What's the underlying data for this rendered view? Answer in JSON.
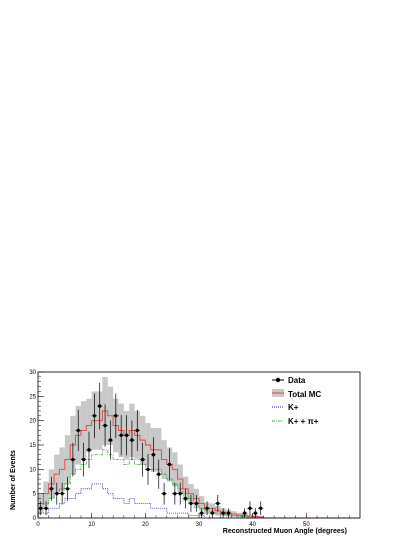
{
  "chart_data": {
    "type": "histogram",
    "xlabel": "Reconstructed Muon Angle (degrees)",
    "ylabel": "Number of Events",
    "xlim": [
      0,
      60
    ],
    "ylim": [
      0,
      30
    ],
    "xticks": [
      0,
      10,
      20,
      30,
      40,
      50
    ],
    "yticks": [
      0,
      5,
      10,
      15,
      20,
      25,
      30
    ],
    "grid": false,
    "legend_position": "top-right",
    "bin_width": 1,
    "bin_edges_start": 0,
    "legend": {
      "data": "Data",
      "total_mc": "Total MC",
      "kplus": "K+",
      "kplus_piplus": "K+ + π+"
    },
    "colors": {
      "data": "#000000",
      "total_mc": "#e8413c",
      "band": "#c8c8c8",
      "kplus": "#2a2ad8",
      "kplus_piplus": "#3aaa3a"
    },
    "series": [
      {
        "name": "Data",
        "type": "points_with_errors",
        "x": [
          0.5,
          1.5,
          2.5,
          3.5,
          4.5,
          5.5,
          6.5,
          7.5,
          8.5,
          9.5,
          10.5,
          11.5,
          12.5,
          13.5,
          14.5,
          15.5,
          16.5,
          17.5,
          18.5,
          19.5,
          20.5,
          21.5,
          22.5,
          23.5,
          24.5,
          25.5,
          26.5,
          27.5,
          28.5,
          29.5,
          30.5,
          31.5,
          32.5,
          33.5,
          34.5,
          35.5,
          38.5,
          39.5,
          40.5,
          41.5
        ],
        "y": [
          2,
          2,
          6,
          5,
          5,
          6,
          12,
          18,
          12,
          14,
          21,
          23,
          19,
          16,
          21,
          17,
          17,
          16,
          18,
          12,
          10,
          13,
          9,
          5,
          11,
          5,
          5,
          4,
          3,
          3,
          1,
          2,
          1,
          3,
          1,
          1,
          1,
          2,
          1,
          2
        ]
      },
      {
        "name": "Total MC",
        "type": "step",
        "values": [
          3,
          5,
          7,
          9,
          10,
          12,
          15,
          17,
          18,
          19,
          20,
          20,
          22,
          21,
          19,
          18,
          17,
          18,
          17,
          16,
          15,
          14,
          14,
          12,
          11,
          10,
          8,
          6,
          5,
          4,
          3,
          2,
          2,
          1.5,
          1.2,
          1,
          0.8,
          0.6,
          0.5,
          0.4,
          0.3,
          0.2,
          0,
          0,
          0,
          0,
          0,
          0,
          0,
          0,
          0,
          0,
          0,
          0,
          0,
          0,
          0,
          0,
          0,
          0
        ]
      },
      {
        "name": "Total MC uncertainty band",
        "type": "band",
        "half_width": [
          2,
          2.5,
          3,
          4,
          4.5,
          5,
          6,
          6,
          6,
          5.5,
          6,
          6,
          7,
          6,
          5.5,
          5.5,
          5,
          5.5,
          5,
          5,
          4.5,
          4.5,
          4.5,
          4,
          3.5,
          3.5,
          3,
          2.5,
          2,
          2,
          1.5,
          1.2,
          1,
          1,
          0.8,
          0.7,
          0.6,
          0.5,
          0.4,
          0.3,
          0.3,
          0.2,
          0,
          0,
          0,
          0,
          0,
          0,
          0,
          0,
          0,
          0,
          0,
          0,
          0,
          0,
          0,
          0,
          0,
          0
        ]
      },
      {
        "name": "K+",
        "type": "step",
        "values": [
          1,
          1,
          2,
          2,
          3,
          4,
          4,
          5,
          6,
          6,
          7,
          7,
          6,
          5,
          4,
          4,
          3,
          4,
          3,
          3,
          3,
          2,
          2,
          2,
          1,
          1,
          1,
          1,
          0.5,
          0.5,
          0.5,
          0,
          0,
          0,
          0,
          0,
          0,
          0,
          0,
          0,
          0,
          0,
          0,
          0,
          0,
          0,
          0,
          0,
          0,
          0,
          0,
          0,
          0,
          0,
          0,
          0,
          0,
          0,
          0,
          0
        ]
      },
      {
        "name": "K+ + π+",
        "type": "step",
        "values": [
          2,
          3,
          4,
          5,
          6,
          7,
          9,
          10,
          11,
          12,
          13,
          13,
          14,
          13,
          12,
          12,
          11,
          12,
          11,
          11,
          10,
          10,
          10,
          9,
          8,
          7,
          6,
          5,
          4,
          3,
          2,
          1.5,
          1.2,
          1,
          0.8,
          0.6,
          0.5,
          0.4,
          0.3,
          0.2,
          0.2,
          0.1,
          0,
          0,
          0,
          0,
          0,
          0,
          0,
          0,
          0,
          0,
          0,
          0,
          0,
          0,
          0,
          0,
          0,
          0
        ]
      }
    ]
  }
}
